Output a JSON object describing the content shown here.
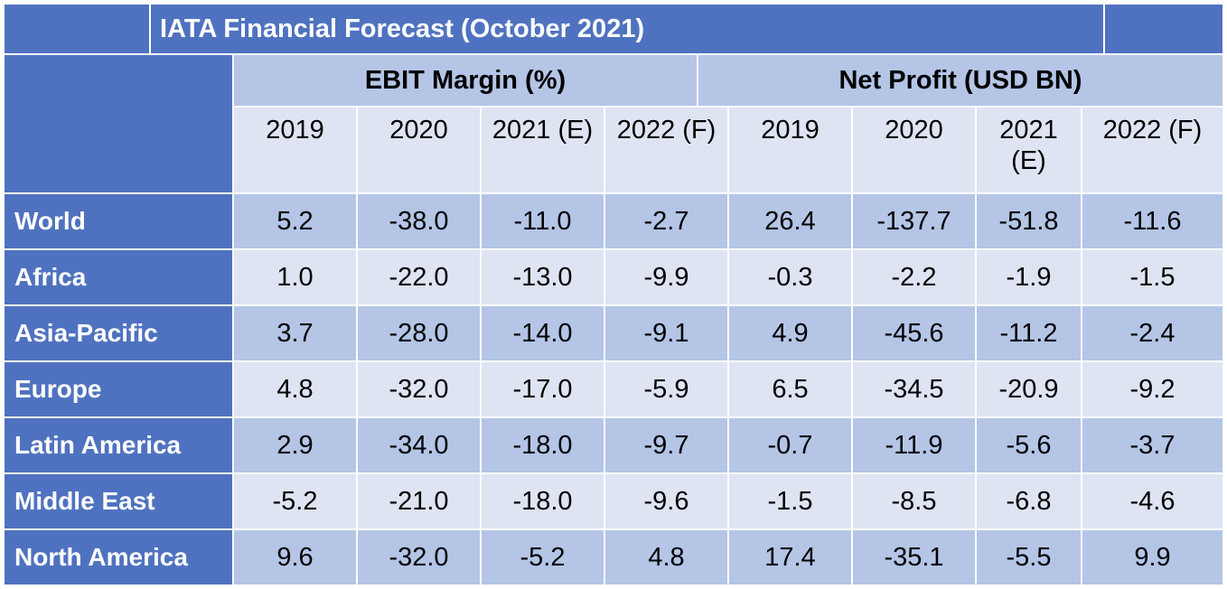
{
  "title": "IATA Financial Forecast (October 2021)",
  "groups": {
    "ebit": "EBIT Margin (%)",
    "net": "Net Profit (USD BN)"
  },
  "years": [
    "2019",
    "2020",
    "2021 (E)",
    "2022 (F)",
    "2019",
    "2020",
    "2021\n(E)",
    "2022 (F)"
  ],
  "rows": [
    {
      "region": "World",
      "values": [
        "5.2",
        "-38.0",
        "-11.0",
        "-2.7",
        "26.4",
        "-137.7",
        "-51.8",
        "-11.6"
      ]
    },
    {
      "region": "Africa",
      "values": [
        "1.0",
        "-22.0",
        "-13.0",
        "-9.9",
        "-0.3",
        "-2.2",
        "-1.9",
        "-1.5"
      ]
    },
    {
      "region": "Asia-Pacific",
      "values": [
        "3.7",
        "-28.0",
        "-14.0",
        "-9.1",
        "4.9",
        "-45.6",
        "-11.2",
        "-2.4"
      ]
    },
    {
      "region": "Europe",
      "values": [
        "4.8",
        "-32.0",
        "-17.0",
        "-5.9",
        "6.5",
        "-34.5",
        "-20.9",
        "-9.2"
      ]
    },
    {
      "region": "Latin America",
      "values": [
        "2.9",
        "-34.0",
        "-18.0",
        "-9.7",
        "-0.7",
        "-11.9",
        "-5.6",
        "-3.7"
      ]
    },
    {
      "region": "Middle East",
      "values": [
        "-5.2",
        "-21.0",
        "-18.0",
        "-9.6",
        "-1.5",
        "-8.5",
        "-6.8",
        "-4.6"
      ]
    },
    {
      "region": "North America",
      "values": [
        "9.6",
        "-32.0",
        "-5.2",
        "4.8",
        "17.4",
        "-35.1",
        "-5.5",
        "9.9"
      ]
    }
  ],
  "colors": {
    "header_dark": "#4f72c0",
    "band_dark": "#b4c5e6",
    "band_light": "#dee4f2"
  }
}
